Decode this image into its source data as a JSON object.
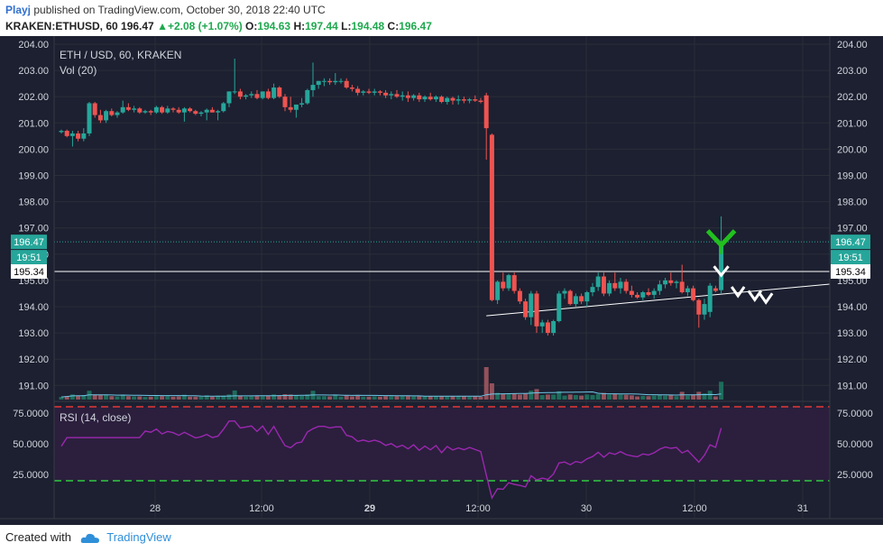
{
  "header": {
    "user": "Playj",
    "published_text": "published on TradingView.com, October 30, 2018 22:40 UTC",
    "symbol": "KRAKEN:ETHUSD, 60",
    "price": "196.47",
    "change": "+2.08 (+1.07%)",
    "open_label": "O:",
    "open": "194.63",
    "high_label": "H:",
    "high": "197.44",
    "low_label": "L:",
    "low": "194.48",
    "close_label": "C:",
    "close": "196.47"
  },
  "legend": {
    "main": "ETH / USD, 60, KRAKEN",
    "volume": "Vol (20)",
    "rsi": "RSI (14, close)"
  },
  "price_axis": {
    "ticks": [
      "204.00",
      "203.00",
      "202.00",
      "201.00",
      "200.00",
      "199.00",
      "198.00",
      "197.00",
      "196.00",
      "195.00",
      "194.00",
      "193.00",
      "192.00",
      "191.00"
    ],
    "last_price_tag": "196.47",
    "countdown_tag": "19:51",
    "line_tag": "195.34"
  },
  "rsi_axis": {
    "ticks": [
      "75.0000",
      "50.0000",
      "25.0000"
    ]
  },
  "time_axis": {
    "ticks": [
      "28",
      "12:00",
      "29",
      "12:00",
      "30",
      "12:00",
      "31"
    ]
  },
  "footer": {
    "created_with": "Created with",
    "brand": "TradingView"
  },
  "colors": {
    "up": "#26a69a",
    "down": "#ef5350",
    "bg": "#1c2030",
    "rsi": "#9c27b0",
    "rsi_band": "#2b1f3d",
    "volume_ma": "#6ec6e6",
    "horizontal_line": "#ffffff",
    "trend_line": "#ffffff"
  },
  "chart_data": {
    "type": "candlestick",
    "title": "ETH / USD, 60, KRAKEN",
    "ylim": [
      190.6,
      204.1
    ],
    "horizontal_line": 195.34,
    "last_price": 196.47,
    "trend_line": {
      "start_index": 76,
      "start_value": 193.65,
      "end_index": 142,
      "end_value": 194.86
    },
    "volume_ma_label": "Vol (20)",
    "rsi": {
      "label": "RSI (14, close)",
      "ylim": [
        0,
        100
      ],
      "bands": [
        80,
        20
      ]
    },
    "candles": [
      [
        200.65,
        200.75,
        200.6,
        200.7
      ],
      [
        200.7,
        200.75,
        200.45,
        200.5
      ],
      [
        200.5,
        200.7,
        200.1,
        200.6
      ],
      [
        200.6,
        200.7,
        200.3,
        200.4
      ],
      [
        200.4,
        200.8,
        200.3,
        200.6
      ],
      [
        200.6,
        201.8,
        200.5,
        201.75
      ],
      [
        201.75,
        201.8,
        201.2,
        201.3
      ],
      [
        201.3,
        201.5,
        201.0,
        201.1
      ],
      [
        201.1,
        201.5,
        201.0,
        201.45
      ],
      [
        201.45,
        201.55,
        201.25,
        201.3
      ],
      [
        201.3,
        201.45,
        201.2,
        201.4
      ],
      [
        201.4,
        201.85,
        201.35,
        201.6
      ],
      [
        201.6,
        201.75,
        201.45,
        201.5
      ],
      [
        201.5,
        201.65,
        201.4,
        201.55
      ],
      [
        201.55,
        201.6,
        201.35,
        201.4
      ],
      [
        201.4,
        201.5,
        201.35,
        201.45
      ],
      [
        201.45,
        201.5,
        201.3,
        201.4
      ],
      [
        201.4,
        201.65,
        201.35,
        201.6
      ],
      [
        201.6,
        201.65,
        201.35,
        201.4
      ],
      [
        201.4,
        201.65,
        201.35,
        201.55
      ],
      [
        201.55,
        201.6,
        201.4,
        201.5
      ],
      [
        201.5,
        201.6,
        201.35,
        201.4
      ],
      [
        201.4,
        201.6,
        201.05,
        201.55
      ],
      [
        201.55,
        201.6,
        201.4,
        201.45
      ],
      [
        201.45,
        201.5,
        201.3,
        201.35
      ],
      [
        201.35,
        201.45,
        201.25,
        201.4
      ],
      [
        201.4,
        201.55,
        201.1,
        201.5
      ],
      [
        201.5,
        201.6,
        201.4,
        201.4
      ],
      [
        201.4,
        201.5,
        201.1,
        201.45
      ],
      [
        201.45,
        201.8,
        201.4,
        201.75
      ],
      [
        201.75,
        202.2,
        201.6,
        202.2
      ],
      [
        202.2,
        203.45,
        202.1,
        202.2
      ],
      [
        202.2,
        202.3,
        201.9,
        202.0
      ],
      [
        202.0,
        202.1,
        201.9,
        202.05
      ],
      [
        202.05,
        202.2,
        201.95,
        202.1
      ],
      [
        202.1,
        202.25,
        201.9,
        201.95
      ],
      [
        201.95,
        202.2,
        201.9,
        202.2
      ],
      [
        202.2,
        202.3,
        201.9,
        201.95
      ],
      [
        201.95,
        202.5,
        201.9,
        202.35
      ],
      [
        202.35,
        202.4,
        201.95,
        202.0
      ],
      [
        202.0,
        202.1,
        201.45,
        201.6
      ],
      [
        201.6,
        202.0,
        201.4,
        201.5
      ],
      [
        201.5,
        201.7,
        201.2,
        201.7
      ],
      [
        201.7,
        201.95,
        201.6,
        201.75
      ],
      [
        201.75,
        202.3,
        201.7,
        202.25
      ],
      [
        202.25,
        203.3,
        202.0,
        202.45
      ],
      [
        202.45,
        202.6,
        202.3,
        202.6
      ],
      [
        202.6,
        202.7,
        202.4,
        202.6
      ],
      [
        202.6,
        202.7,
        202.45,
        202.55
      ],
      [
        202.55,
        202.9,
        202.45,
        202.6
      ],
      [
        202.6,
        202.7,
        202.5,
        202.6
      ],
      [
        202.6,
        202.7,
        202.3,
        202.35
      ],
      [
        202.35,
        202.45,
        202.2,
        202.3
      ],
      [
        202.3,
        202.4,
        202.05,
        202.15
      ],
      [
        202.15,
        202.25,
        202.05,
        202.2
      ],
      [
        202.2,
        202.3,
        202.1,
        202.15
      ],
      [
        202.15,
        202.3,
        202.05,
        202.2
      ],
      [
        202.2,
        202.25,
        202.05,
        202.15
      ],
      [
        202.15,
        202.25,
        201.95,
        202.05
      ],
      [
        202.05,
        202.2,
        201.9,
        202.1
      ],
      [
        202.1,
        202.25,
        201.95,
        202.0
      ],
      [
        202.0,
        202.2,
        201.85,
        202.05
      ],
      [
        202.05,
        202.2,
        201.8,
        201.95
      ],
      [
        201.95,
        202.1,
        201.85,
        202.05
      ],
      [
        202.05,
        202.15,
        201.8,
        201.9
      ],
      [
        201.9,
        202.05,
        201.8,
        202.0
      ],
      [
        202.0,
        202.15,
        201.85,
        201.9
      ],
      [
        201.9,
        202.05,
        201.8,
        202.0
      ],
      [
        202.0,
        202.05,
        201.75,
        201.8
      ],
      [
        201.8,
        202.0,
        201.7,
        201.95
      ],
      [
        201.95,
        202.0,
        201.7,
        201.85
      ],
      [
        201.85,
        202.05,
        201.7,
        201.9
      ],
      [
        201.9,
        202.0,
        201.75,
        201.85
      ],
      [
        201.85,
        201.95,
        201.75,
        201.9
      ],
      [
        201.9,
        202.05,
        201.8,
        201.85
      ],
      [
        201.85,
        201.95,
        201.75,
        201.8
      ],
      [
        202.05,
        202.15,
        199.6,
        200.8
      ],
      [
        200.55,
        200.6,
        194.2,
        194.25
      ],
      [
        194.25,
        195.0,
        194.1,
        194.95
      ],
      [
        194.95,
        195.3,
        194.6,
        194.7
      ],
      [
        194.7,
        195.25,
        194.6,
        195.2
      ],
      [
        195.2,
        195.3,
        194.5,
        194.6
      ],
      [
        194.6,
        194.7,
        194.1,
        194.2
      ],
      [
        194.2,
        194.3,
        193.5,
        193.6
      ],
      [
        193.6,
        194.6,
        193.3,
        194.5
      ],
      [
        194.5,
        194.6,
        193.0,
        193.25
      ],
      [
        193.25,
        193.5,
        193.0,
        193.4
      ],
      [
        193.4,
        193.5,
        192.9,
        193.0
      ],
      [
        193.0,
        193.5,
        192.9,
        193.45
      ],
      [
        193.45,
        194.6,
        193.4,
        194.5
      ],
      [
        194.5,
        194.7,
        194.3,
        194.6
      ],
      [
        194.6,
        194.65,
        194.05,
        194.1
      ],
      [
        194.1,
        194.5,
        194.0,
        194.4
      ],
      [
        194.4,
        194.5,
        194.1,
        194.2
      ],
      [
        194.2,
        194.6,
        194.0,
        194.55
      ],
      [
        194.55,
        194.9,
        194.4,
        194.75
      ],
      [
        194.75,
        195.3,
        194.6,
        195.15
      ],
      [
        195.15,
        195.3,
        194.4,
        194.5
      ],
      [
        194.5,
        195.0,
        194.4,
        194.9
      ],
      [
        194.9,
        195.3,
        194.6,
        194.7
      ],
      [
        194.7,
        195.1,
        194.5,
        194.95
      ],
      [
        194.95,
        195.05,
        194.5,
        194.6
      ],
      [
        194.6,
        194.8,
        194.35,
        194.45
      ],
      [
        194.45,
        194.55,
        194.3,
        194.35
      ],
      [
        194.35,
        194.6,
        194.25,
        194.55
      ],
      [
        194.55,
        194.7,
        194.4,
        194.45
      ],
      [
        194.45,
        194.7,
        194.3,
        194.6
      ],
      [
        194.6,
        195.0,
        194.45,
        194.85
      ],
      [
        194.85,
        195.1,
        194.7,
        195.0
      ],
      [
        195.0,
        195.3,
        194.8,
        194.9
      ],
      [
        194.9,
        195.0,
        194.7,
        194.95
      ],
      [
        194.95,
        195.6,
        194.5,
        194.55
      ],
      [
        194.55,
        194.8,
        194.4,
        194.7
      ],
      [
        194.7,
        194.8,
        194.2,
        194.25
      ],
      [
        194.25,
        194.3,
        193.2,
        193.7
      ],
      [
        193.7,
        194.3,
        193.5,
        194.1
      ],
      [
        193.8,
        194.9,
        193.6,
        194.8
      ],
      [
        194.7,
        194.8,
        194.55,
        194.6
      ],
      [
        194.63,
        197.44,
        194.48,
        196.47
      ]
    ],
    "volume": [],
    "rsi_values": []
  }
}
